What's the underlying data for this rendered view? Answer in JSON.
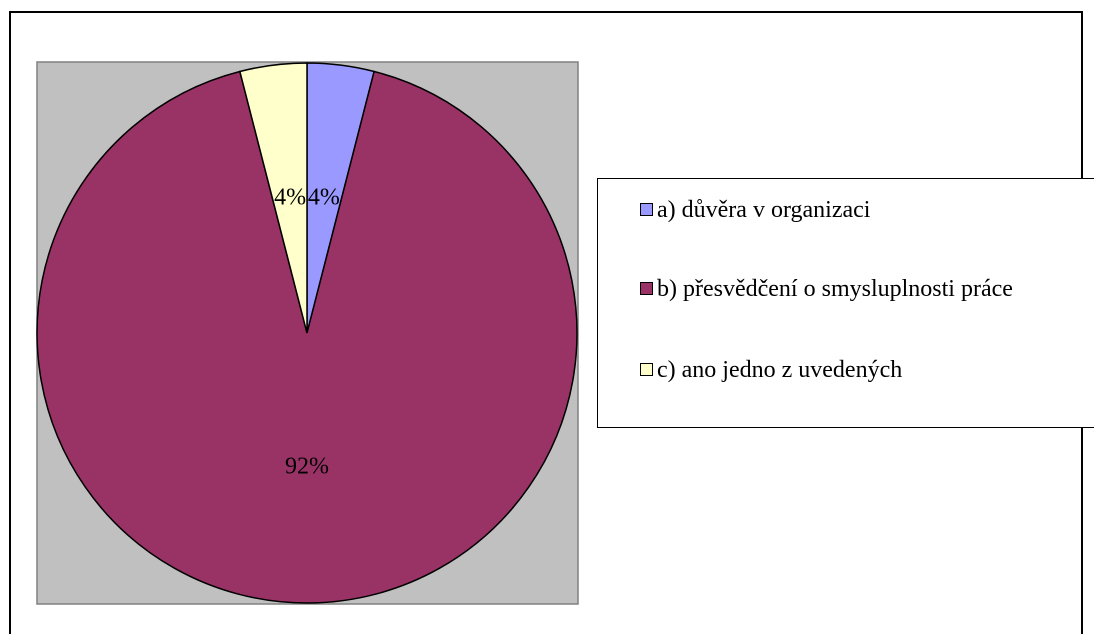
{
  "chart_data": {
    "type": "pie",
    "categories": [
      "a) důvěra v organizaci",
      "b) přesvědčení o smysluplnosti práce",
      "c) ano jedno z uvedených"
    ],
    "values": [
      4,
      92,
      4
    ],
    "value_labels": [
      "4%",
      "92%",
      "4%"
    ],
    "colors": [
      "#9999ff",
      "#993366",
      "#ffffcc"
    ],
    "legend": "right"
  }
}
